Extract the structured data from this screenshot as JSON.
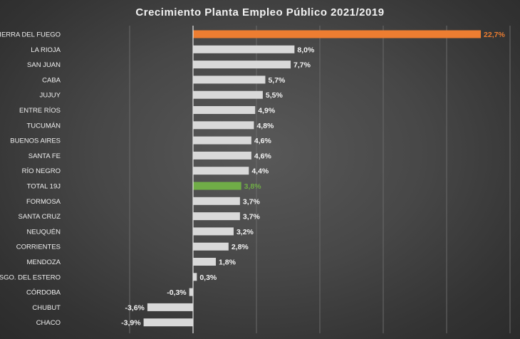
{
  "chart_data": {
    "type": "bar",
    "orientation": "horizontal",
    "title": "Crecimiento  Planta  Empleo  Público  2021/2019",
    "xlabel": "",
    "ylabel": "",
    "unit": "%",
    "grid": true,
    "legend": "none",
    "xlim": [
      -5,
      25
    ],
    "colors": {
      "default": "#d9d9d9",
      "highlight_max": "#ed7d31",
      "highlight_total": "#70ad47",
      "label_default": "#f2f2f2"
    },
    "categories": [
      "TIERRA DEL FUEGO",
      "LA RIOJA",
      "SAN JUAN",
      "CABA",
      "JUJUY",
      "ENTRE RÍOS",
      "TUCUMÁN",
      "BUENOS AIRES",
      "SANTA FE",
      "RÍO NEGRO",
      "TOTAL 19J",
      "FORMOSA",
      "SANTA CRUZ",
      "NEUQUÉN",
      "CORRIENTES",
      "MENDOZA",
      "SGO. DEL ESTERO",
      "CÓRDOBA",
      "CHUBUT",
      "CHACO"
    ],
    "values": [
      22.7,
      8.0,
      7.7,
      5.7,
      5.5,
      4.9,
      4.8,
      4.6,
      4.6,
      4.4,
      3.8,
      3.7,
      3.7,
      3.2,
      2.8,
      1.8,
      0.3,
      -0.3,
      -3.6,
      -3.9
    ],
    "value_labels": [
      "22,7%",
      "8,0%",
      "7,7%",
      "5,7%",
      "5,5%",
      "4,9%",
      "4,8%",
      "4,6%",
      "4,6%",
      "4,4%",
      "3,8%",
      "3,7%",
      "3,7%",
      "3,2%",
      "2,8%",
      "1,8%",
      "0,3%",
      "-0,3%",
      "-3,6%",
      "-3,9%"
    ],
    "bar_colors": [
      "#ed7d31",
      "#d9d9d9",
      "#d9d9d9",
      "#d9d9d9",
      "#d9d9d9",
      "#d9d9d9",
      "#d9d9d9",
      "#d9d9d9",
      "#d9d9d9",
      "#d9d9d9",
      "#70ad47",
      "#d9d9d9",
      "#d9d9d9",
      "#d9d9d9",
      "#d9d9d9",
      "#d9d9d9",
      "#d9d9d9",
      "#d9d9d9",
      "#d9d9d9",
      "#d9d9d9"
    ],
    "label_colors": [
      "#ed7d31",
      "#f2f2f2",
      "#f2f2f2",
      "#f2f2f2",
      "#f2f2f2",
      "#f2f2f2",
      "#f2f2f2",
      "#f2f2f2",
      "#f2f2f2",
      "#f2f2f2",
      "#70ad47",
      "#f2f2f2",
      "#f2f2f2",
      "#f2f2f2",
      "#f2f2f2",
      "#f2f2f2",
      "#f2f2f2",
      "#f2f2f2",
      "#f2f2f2",
      "#f2f2f2"
    ]
  }
}
